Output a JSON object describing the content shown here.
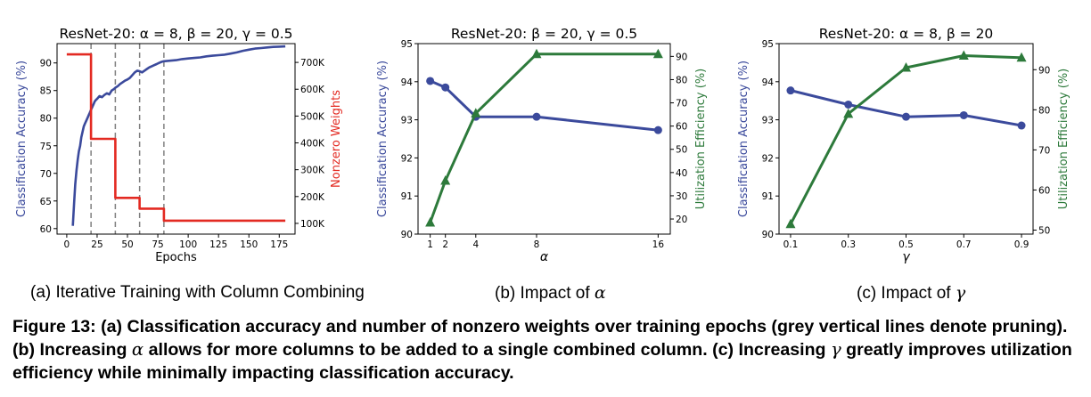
{
  "chart_data": [
    {
      "type": "line",
      "title": "ResNet-20: α = 8, β = 20, γ = 0.5",
      "xlabel": "Epochs",
      "ylabel": "Classification Accuracy (%)",
      "ylabel_right": "Nonzero Weights",
      "xlim": [
        -8,
        188
      ],
      "ylim": [
        59,
        93.5
      ],
      "ylim_right": [
        60000,
        770000
      ],
      "xticks": [
        0,
        25,
        50,
        75,
        100,
        125,
        150,
        175
      ],
      "yticks": [
        60,
        65,
        70,
        75,
        80,
        85,
        90
      ],
      "yticks_right": [
        100000,
        200000,
        300000,
        400000,
        500000,
        600000,
        700000
      ],
      "yticks_right_labels": [
        "100K",
        "200K",
        "300K",
        "400K",
        "500K",
        "600K",
        "700K"
      ],
      "pruning_epochs": [
        20,
        40,
        60,
        80
      ],
      "series": [
        {
          "name": "",
          "axis": "left",
          "color": "#3b4a9c",
          "x": [
            5,
            6,
            7,
            8,
            9,
            10,
            11,
            12,
            13,
            14,
            15,
            16,
            17,
            18,
            19,
            20,
            21,
            22,
            23,
            24,
            25,
            27,
            29,
            31,
            33,
            35,
            37,
            39,
            40,
            42,
            44,
            46,
            48,
            50,
            52,
            54,
            56,
            58,
            60,
            62,
            64,
            66,
            68,
            70,
            72,
            74,
            76,
            78,
            80,
            85,
            90,
            95,
            100,
            105,
            110,
            115,
            120,
            125,
            130,
            135,
            140,
            145,
            150,
            155,
            160,
            165,
            170,
            175,
            180
          ],
          "y": [
            60.5,
            64.5,
            68,
            70.5,
            72.5,
            74,
            75,
            76.5,
            77.5,
            78.5,
            79,
            79.5,
            80,
            80.5,
            81,
            81.5,
            82,
            82.5,
            83,
            83.3,
            83.5,
            84,
            83.8,
            84.2,
            84.5,
            84.3,
            85,
            85.3,
            85.5,
            85.8,
            86.2,
            86.5,
            86.8,
            87,
            87.3,
            87.8,
            88.3,
            88.6,
            88.5,
            88.3,
            88.6,
            88.9,
            89.2,
            89.4,
            89.6,
            89.8,
            90,
            90.2,
            90.3,
            90.4,
            90.5,
            90.7,
            90.8,
            90.9,
            91.0,
            91.2,
            91.3,
            91.4,
            91.5,
            91.7,
            91.9,
            92.2,
            92.4,
            92.6,
            92.7,
            92.8,
            92.9,
            92.95,
            93.0
          ]
        },
        {
          "name": "",
          "axis": "right",
          "color": "#e32a22",
          "x": [
            0,
            20,
            20,
            40,
            40,
            60,
            60,
            80,
            80,
            180
          ],
          "y": [
            730000,
            730000,
            415000,
            415000,
            195000,
            195000,
            155000,
            155000,
            110000,
            110000
          ]
        }
      ]
    },
    {
      "type": "line",
      "title": "ResNet-20: β = 20, γ = 0.5",
      "xlabel": "α",
      "ylabel": "Classification Accuracy (%)",
      "ylabel_right": "Utilization Efficiency (%)",
      "xlim": [
        0.2,
        16.8
      ],
      "ylim": [
        90,
        95
      ],
      "ylim_right": [
        13.5,
        95.5
      ],
      "xticks": [
        1,
        2,
        4,
        8,
        16
      ],
      "yticks": [
        90,
        91,
        92,
        93,
        94,
        95
      ],
      "yticks_right": [
        20,
        30,
        40,
        50,
        60,
        70,
        80,
        90
      ],
      "series": [
        {
          "name": "",
          "axis": "left",
          "color": "#3b4a9c",
          "marker": "circle",
          "x": [
            1,
            2,
            4,
            8,
            16
          ],
          "y": [
            94.02,
            93.85,
            93.08,
            93.08,
            92.73
          ]
        },
        {
          "name": "",
          "axis": "right",
          "color": "#2d7a3b",
          "marker": "triangle",
          "x": [
            1,
            2,
            4,
            8,
            16
          ],
          "y": [
            18.5,
            36.5,
            65.5,
            91.0,
            91.0
          ]
        }
      ]
    },
    {
      "type": "line",
      "title": "ResNet-20: α = 8, β = 20",
      "xlabel": "γ",
      "ylabel": "Classification Accuracy (%)",
      "ylabel_right": "Utilization Efficiency (%)",
      "xlim": [
        0.06,
        0.94
      ],
      "ylim": [
        90,
        95
      ],
      "ylim_right": [
        49,
        96.5
      ],
      "xticks": [
        0.1,
        0.3,
        0.5,
        0.7,
        0.9
      ],
      "yticks": [
        90,
        91,
        92,
        93,
        94,
        95
      ],
      "yticks_right": [
        50,
        60,
        70,
        80,
        90
      ],
      "series": [
        {
          "name": "",
          "axis": "left",
          "color": "#3b4a9c",
          "marker": "circle",
          "x": [
            0.1,
            0.3,
            0.5,
            0.7,
            0.9
          ],
          "y": [
            93.77,
            93.4,
            93.08,
            93.12,
            92.85
          ]
        },
        {
          "name": "",
          "axis": "right",
          "color": "#2d7a3b",
          "marker": "triangle",
          "x": [
            0.1,
            0.3,
            0.5,
            0.7,
            0.9
          ],
          "y": [
            51.5,
            79.0,
            90.5,
            93.5,
            93.0
          ]
        }
      ]
    }
  ],
  "subcaptions": {
    "a": "(a) Iterative Training with Column Combining",
    "b_prefix": "(b) Impact of ",
    "b_symbol": "α",
    "c_prefix": "(c) Impact of ",
    "c_symbol": "γ"
  },
  "caption": {
    "p1": "Figure 13: (a) Classification accuracy and number of nonzero weights over training epochs (grey vertical lines denote pruning). (b) Increasing ",
    "sym1": "α",
    "p2": " allows for more columns to be added to a single combined column. (c) Increasing ",
    "sym2": "γ",
    "p3": " greatly improves utilization efficiency while minimally impacting classification accuracy."
  },
  "colors": {
    "accuracy": "#3b4a9c",
    "nonzero_weights": "#e32a22",
    "utilization": "#2d7a3b",
    "pruning_lines": "#808080"
  }
}
